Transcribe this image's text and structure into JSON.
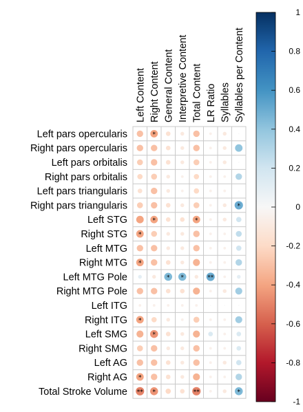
{
  "chart_data": {
    "type": "heatmap",
    "subtype": "correlation-circle-matrix",
    "columns": [
      "Left Content",
      "Right Content",
      "General Content",
      "Interpretive Content",
      "Total Content",
      "LR Ratio",
      "Syllables",
      "Syllables per Content"
    ],
    "rows": [
      "Left pars opercularis",
      "Right pars opercularis",
      "Left pars orbitalis",
      "Right pars orbitalis",
      "Left pars triangularis",
      "Right pars triangularis",
      "Left STG",
      "Right STG",
      "Left MTG",
      "Right MTG",
      "Left MTG Pole",
      "Right MTG Pole",
      "Left ITG",
      "Right ITG",
      "Left SMG",
      "Right SMG",
      "Left AG",
      "Right AG",
      "Total Stroke Volume"
    ],
    "values": [
      [
        -0.3,
        -0.4,
        -0.15,
        -0.1,
        -0.3,
        -0.05,
        -0.1,
        0.0
      ],
      [
        -0.3,
        -0.3,
        -0.15,
        -0.1,
        -0.3,
        -0.05,
        -0.1,
        0.4
      ],
      [
        -0.25,
        -0.3,
        -0.15,
        -0.1,
        -0.25,
        -0.05,
        -0.1,
        0.0
      ],
      [
        -0.2,
        -0.25,
        -0.1,
        -0.05,
        -0.2,
        -0.05,
        -0.05,
        0.3
      ],
      [
        -0.15,
        -0.3,
        -0.1,
        -0.05,
        -0.2,
        -0.05,
        -0.05,
        0.0
      ],
      [
        -0.25,
        -0.3,
        -0.15,
        -0.1,
        -0.25,
        -0.05,
        -0.1,
        0.5
      ],
      [
        -0.4,
        -0.4,
        -0.15,
        -0.15,
        -0.4,
        -0.05,
        -0.1,
        0.2
      ],
      [
        -0.4,
        -0.25,
        -0.1,
        -0.1,
        -0.3,
        -0.05,
        -0.05,
        0.25
      ],
      [
        -0.3,
        -0.3,
        -0.1,
        -0.1,
        -0.3,
        -0.05,
        -0.05,
        0.2
      ],
      [
        -0.4,
        -0.3,
        -0.15,
        -0.1,
        -0.35,
        -0.05,
        -0.05,
        0.3
      ],
      [
        0.1,
        -0.1,
        0.45,
        0.45,
        -0.1,
        0.5,
        -0.05,
        0.1
      ],
      [
        -0.3,
        -0.3,
        -0.15,
        -0.15,
        -0.35,
        -0.05,
        -0.1,
        0.35
      ],
      [
        -0.05,
        -0.05,
        -0.05,
        -0.05,
        -0.05,
        0.0,
        0.0,
        0.0
      ],
      [
        -0.4,
        -0.2,
        -0.1,
        -0.05,
        -0.25,
        -0.05,
        -0.05,
        0.35
      ],
      [
        -0.35,
        -0.45,
        -0.15,
        -0.1,
        -0.35,
        0.15,
        -0.05,
        0.15
      ],
      [
        -0.25,
        -0.3,
        -0.1,
        -0.1,
        -0.3,
        -0.05,
        -0.05,
        0.15
      ],
      [
        -0.3,
        -0.3,
        -0.15,
        -0.1,
        -0.3,
        -0.05,
        -0.1,
        0.2
      ],
      [
        -0.4,
        -0.3,
        -0.15,
        -0.1,
        -0.35,
        -0.05,
        -0.05,
        0.3
      ],
      [
        -0.5,
        -0.45,
        -0.2,
        -0.15,
        -0.5,
        -0.05,
        -0.1,
        0.45
      ]
    ],
    "significance": [
      [
        0,
        1,
        0,
        0,
        0,
        0,
        0,
        0
      ],
      [
        0,
        0,
        0,
        0,
        0,
        0,
        0,
        0
      ],
      [
        0,
        0,
        0,
        0,
        0,
        0,
        0,
        0
      ],
      [
        0,
        0,
        0,
        0,
        0,
        0,
        0,
        0
      ],
      [
        0,
        0,
        0,
        0,
        0,
        0,
        0,
        0
      ],
      [
        0,
        0,
        0,
        0,
        0,
        0,
        0,
        1
      ],
      [
        0,
        1,
        0,
        0,
        1,
        0,
        0,
        0
      ],
      [
        1,
        0,
        0,
        0,
        0,
        0,
        0,
        0
      ],
      [
        0,
        0,
        0,
        0,
        0,
        0,
        0,
        0
      ],
      [
        1,
        0,
        0,
        0,
        0,
        0,
        0,
        0
      ],
      [
        0,
        0,
        1,
        1,
        0,
        2,
        0,
        0
      ],
      [
        0,
        0,
        0,
        0,
        0,
        0,
        0,
        0
      ],
      [
        0,
        0,
        0,
        0,
        0,
        0,
        0,
        0
      ],
      [
        1,
        0,
        0,
        0,
        0,
        0,
        0,
        0
      ],
      [
        0,
        1,
        0,
        0,
        0,
        0,
        0,
        0
      ],
      [
        0,
        0,
        0,
        0,
        0,
        0,
        0,
        0
      ],
      [
        0,
        0,
        0,
        0,
        0,
        0,
        0,
        0
      ],
      [
        1,
        0,
        0,
        0,
        0,
        0,
        0,
        0
      ],
      [
        2,
        1,
        0,
        0,
        2,
        0,
        0,
        1
      ]
    ],
    "significance_symbol": "*",
    "colorbar": {
      "range": [
        -1,
        1
      ],
      "ticks": [
        "1",
        "0.8",
        "0.6",
        "0.4",
        "0.2",
        "0",
        "-0.2",
        "-0.4",
        "-0.6",
        "-0.8",
        "-1"
      ]
    },
    "colors": {
      "negative_end": "#67001f",
      "positive_end": "#053061",
      "mid": "#f7f7f7",
      "grid": "#c8c8c8"
    },
    "legend": "right"
  }
}
